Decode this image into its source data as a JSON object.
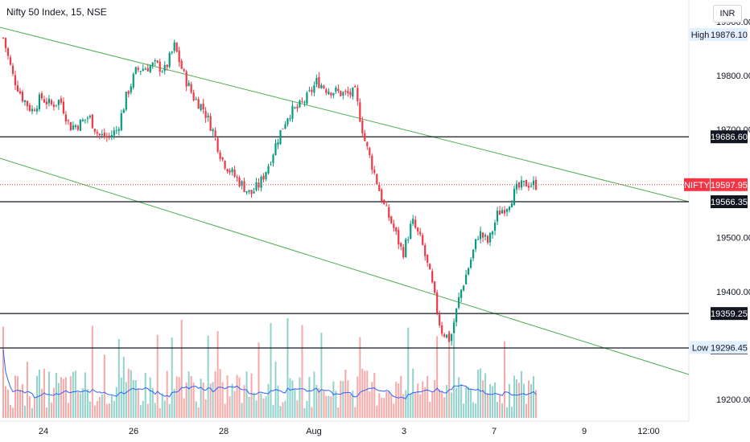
{
  "header": {
    "title": "Nifty 50 Index, 15, NSE"
  },
  "currency": "INR",
  "chart_data": {
    "type": "candlestick",
    "symbol": "NIFTY",
    "interval": "15",
    "exchange": "NSE",
    "x_tick_labels": [
      "24",
      "26",
      "28",
      "Aug",
      "3",
      "7",
      "9",
      "12:00"
    ],
    "y_tick_labels": [
      "19900.00",
      "19800.00",
      "19700.00",
      "19500.00",
      "19400.00",
      "19200.00"
    ],
    "y_ticks": [
      19900,
      19800,
      19700,
      19500,
      19400,
      19200
    ],
    "ylim": [
      19160,
      19940
    ],
    "last_price": {
      "label": "NIFTY",
      "value": 19597.95,
      "display": "19597.95",
      "color": "#f23645"
    },
    "high": {
      "label": "High",
      "value": 19876.1,
      "display": "19876.10"
    },
    "low": {
      "label": "Low",
      "value": 19296.45,
      "display": "19296.45"
    },
    "horizontal_levels": [
      {
        "value": 19686.6,
        "display": "19686.60"
      },
      {
        "value": 19566.35,
        "display": "19566.35"
      },
      {
        "value": 19359.25,
        "display": "19359.25"
      },
      {
        "value": 19295.45,
        "display": "19295.45"
      }
    ],
    "channel_color": "#4caf50",
    "up_color": "#089981",
    "down_color": "#f23645",
    "volume_up_color": "#92d2cc",
    "volume_down_color": "#f7a9a7",
    "volume_ma_color": "#2962ff",
    "close_path": [
      [
        0,
        19870
      ],
      [
        1,
        19800
      ],
      [
        2,
        19760
      ],
      [
        3,
        19735
      ],
      [
        4,
        19760
      ],
      [
        5,
        19745
      ],
      [
        6,
        19755
      ],
      [
        7,
        19705
      ],
      [
        8,
        19710
      ],
      [
        9,
        19725
      ],
      [
        10,
        19690
      ],
      [
        11,
        19685
      ],
      [
        12,
        19700
      ],
      [
        13,
        19765
      ],
      [
        14,
        19810
      ],
      [
        15,
        19815
      ],
      [
        16,
        19820
      ],
      [
        17,
        19810
      ],
      [
        18,
        19855
      ],
      [
        19,
        19800
      ],
      [
        20,
        19760
      ],
      [
        21,
        19740
      ],
      [
        22,
        19700
      ],
      [
        23,
        19645
      ],
      [
        24,
        19620
      ],
      [
        25,
        19600
      ],
      [
        26,
        19580
      ],
      [
        27,
        19600
      ],
      [
        28,
        19640
      ],
      [
        29,
        19690
      ],
      [
        30,
        19730
      ],
      [
        31,
        19740
      ],
      [
        32,
        19760
      ],
      [
        33,
        19790
      ],
      [
        34,
        19775
      ],
      [
        35,
        19770
      ],
      [
        36,
        19765
      ],
      [
        37,
        19768
      ],
      [
        38,
        19680
      ],
      [
        39,
        19620
      ],
      [
        40,
        19560
      ],
      [
        41,
        19520
      ],
      [
        42,
        19470
      ],
      [
        43,
        19530
      ],
      [
        44,
        19490
      ],
      [
        45,
        19420
      ],
      [
        46,
        19330
      ],
      [
        47,
        19310
      ],
      [
        48,
        19395
      ],
      [
        49,
        19450
      ],
      [
        50,
        19510
      ],
      [
        51,
        19490
      ],
      [
        52,
        19545
      ],
      [
        53,
        19560
      ],
      [
        54,
        19590
      ],
      [
        55,
        19600
      ],
      [
        56,
        19598
      ]
    ]
  }
}
